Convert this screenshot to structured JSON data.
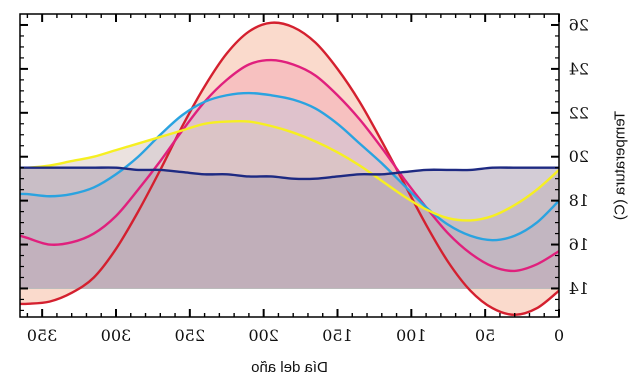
{
  "chart_data": {
    "type": "area",
    "title": "",
    "xlabel": "Día del año",
    "ylabel": "Temperatura (C)",
    "mirrored": true,
    "xlim": [
      0,
      365
    ],
    "ylim": [
      12.7,
      26.5
    ],
    "fill_baseline": 14,
    "x_ticks": [
      0,
      50,
      100,
      150,
      200,
      250,
      300,
      350
    ],
    "y_ticks": [
      14,
      16,
      18,
      20,
      22,
      24,
      26
    ],
    "x": [
      0,
      15,
      30,
      45,
      60,
      75,
      90,
      105,
      120,
      135,
      150,
      165,
      180,
      195,
      210,
      225,
      240,
      255,
      270,
      285,
      300,
      315,
      330,
      345,
      360,
      365
    ],
    "series": [
      {
        "color": "#d4202f",
        "fill": "#f6b59a",
        "values": [
          13.9,
          13.1,
          12.8,
          13.1,
          13.9,
          15.2,
          16.9,
          18.8,
          20.7,
          22.5,
          24.0,
          25.2,
          25.9,
          26.1,
          25.7,
          24.7,
          23.2,
          21.4,
          19.4,
          17.5,
          15.8,
          14.5,
          13.8,
          13.4,
          13.3,
          13.3
        ]
      },
      {
        "color": "#e0207d",
        "fill": "#f4a8b4",
        "values": [
          15.7,
          15.1,
          14.8,
          15.0,
          15.6,
          16.5,
          17.7,
          19.0,
          20.4,
          21.7,
          22.8,
          23.7,
          24.2,
          24.4,
          24.2,
          23.5,
          22.5,
          21.2,
          19.8,
          18.5,
          17.3,
          16.5,
          16.1,
          16.0,
          16.3,
          16.4
        ]
      },
      {
        "color": "#2aa3e0",
        "fill": "#c8c4d8",
        "values": [
          18.0,
          17.0,
          16.4,
          16.2,
          16.4,
          16.9,
          17.7,
          18.7,
          19.7,
          20.6,
          21.5,
          22.2,
          22.6,
          22.8,
          22.9,
          22.8,
          22.5,
          21.9,
          21.0,
          20.0,
          19.2,
          18.6,
          18.3,
          18.2,
          18.3,
          18.3
        ]
      },
      {
        "color": "#f6ef21",
        "fill": "#d8c6c0",
        "values": [
          19.4,
          18.5,
          17.8,
          17.3,
          17.1,
          17.2,
          17.6,
          18.2,
          18.9,
          19.6,
          20.2,
          20.7,
          21.1,
          21.4,
          21.6,
          21.6,
          21.5,
          21.2,
          20.9,
          20.6,
          20.3,
          20.0,
          19.8,
          19.6,
          19.5,
          19.5
        ]
      },
      {
        "color": "#1e2a82",
        "fill": "#a79aae",
        "values": [
          19.5,
          19.5,
          19.5,
          19.5,
          19.4,
          19.4,
          19.4,
          19.3,
          19.2,
          19.2,
          19.1,
          19.0,
          19.0,
          19.1,
          19.1,
          19.2,
          19.2,
          19.3,
          19.4,
          19.4,
          19.5,
          19.5,
          19.5,
          19.5,
          19.5,
          19.5
        ]
      }
    ]
  }
}
